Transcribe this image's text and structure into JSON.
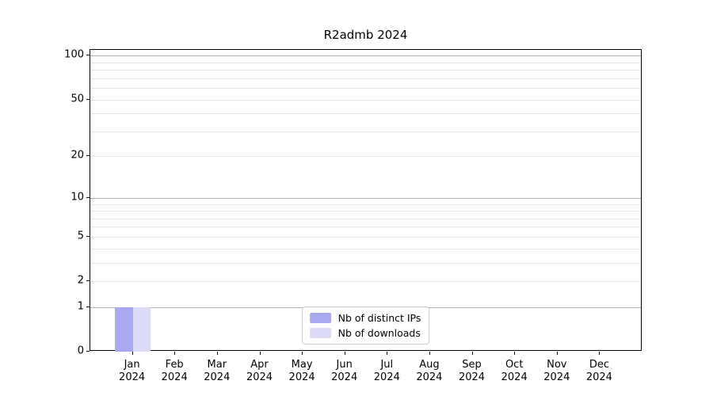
{
  "chart_data": {
    "type": "bar",
    "title": "R2admb 2024",
    "categories": [
      "Jan",
      "Feb",
      "Mar",
      "Apr",
      "May",
      "Jun",
      "Jul",
      "Aug",
      "Sep",
      "Oct",
      "Nov",
      "Dec"
    ],
    "year_label": "2024",
    "series": [
      {
        "name": "Nb of distinct IPs",
        "color": "#a9a9f1",
        "values": [
          1,
          0,
          0,
          0,
          0,
          0,
          0,
          0,
          0,
          0,
          0,
          0
        ]
      },
      {
        "name": "Nb of downloads",
        "color": "#dbdbf8",
        "values": [
          1,
          0,
          0,
          0,
          0,
          0,
          0,
          0,
          0,
          0,
          0,
          0
        ]
      }
    ],
    "xlabel": "",
    "ylabel": "",
    "yscale": "log1p",
    "ylim": [
      0,
      110
    ],
    "y_major_ticks": [
      0,
      1,
      2,
      5,
      10,
      20,
      50,
      100
    ],
    "y_minor_gridlines": [
      3,
      4,
      6,
      7,
      8,
      9,
      30,
      40,
      60,
      70,
      80,
      90
    ],
    "y_decade_gridlines": [
      1,
      10,
      100
    ],
    "grid": true,
    "legend_position": "lower center inside plot"
  },
  "colors": {
    "spine": "#000000",
    "grid_minor": "#e7e7e7",
    "grid_decade": "#b0b0b0",
    "legend_border": "#cccccc",
    "background": "#ffffff",
    "text": "#000000"
  }
}
